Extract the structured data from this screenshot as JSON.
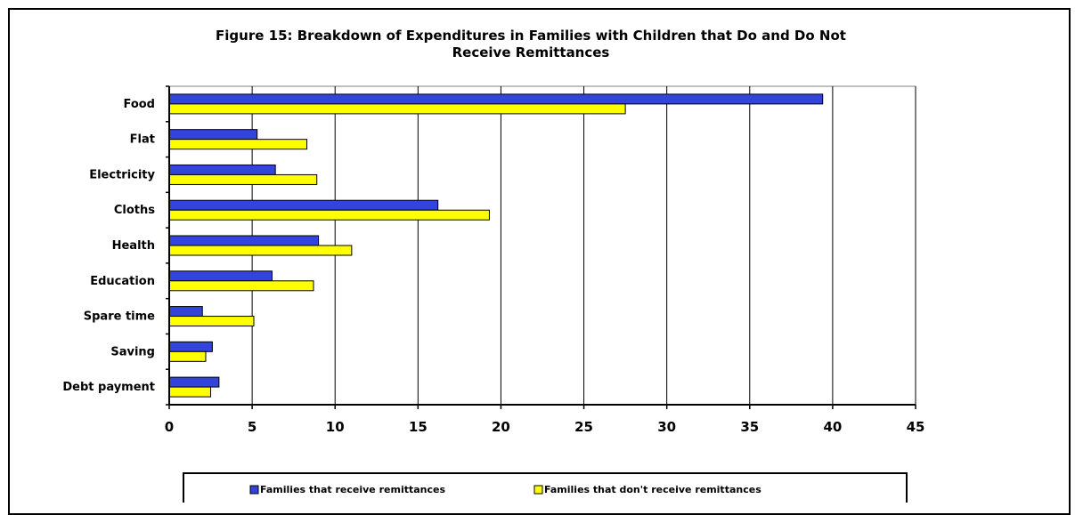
{
  "chart_data": {
    "type": "bar",
    "orientation": "horizontal",
    "title": "Figure 15: Breakdown of Expenditures in Families with Children that Do and Do Not Receive Remittances",
    "title_lines": [
      "Figure 15: Breakdown of Expenditures in Families with Children that Do and Do Not",
      "Receive Remittances"
    ],
    "categories": [
      "Food",
      "Flat",
      "Electricity",
      "Cloths",
      "Health",
      "Education",
      "Spare time",
      "Saving",
      "Debt payment"
    ],
    "series": [
      {
        "name": "Families that receive remittances",
        "color": "#3344dd",
        "values": [
          39.4,
          5.3,
          6.4,
          16.2,
          9.0,
          6.2,
          2.0,
          2.6,
          3.0
        ]
      },
      {
        "name": "Families that don't receive remittances",
        "color": "#ffff00",
        "values": [
          27.5,
          8.3,
          8.9,
          19.3,
          11.0,
          8.7,
          5.1,
          2.2,
          2.5
        ]
      }
    ],
    "xlim": [
      0,
      45
    ],
    "xticks": [
      0,
      5,
      10,
      15,
      20,
      25,
      30,
      35,
      40,
      45
    ],
    "xlabel": "",
    "ylabel": "",
    "grid": true,
    "legend_position": "bottom"
  }
}
